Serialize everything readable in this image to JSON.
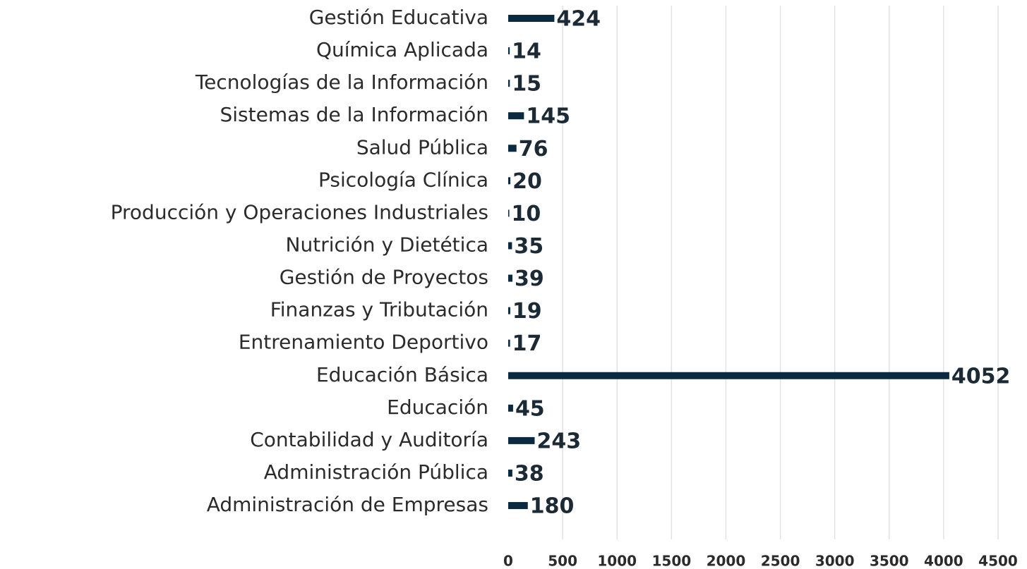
{
  "chart_data": {
    "type": "bar",
    "orientation": "horizontal",
    "categories": [
      "Gestión Educativa",
      "Química Aplicada",
      "Tecnologías de la Información",
      "Sistemas de la Información",
      "Salud Pública",
      "Psicología Clínica",
      "Producción y Operaciones Industriales",
      "Nutrición y Dietética",
      "Gestión de Proyectos",
      "Finanzas y Tributación",
      "Entrenamiento Deportivo",
      "Educación Básica",
      "Educación",
      "Contabilidad y Auditoría",
      "Administración Pública",
      "Administración de Empresas"
    ],
    "values": [
      424,
      14,
      15,
      145,
      76,
      20,
      10,
      35,
      39,
      19,
      17,
      4052,
      45,
      243,
      38,
      180
    ],
    "color": "#0b2a40",
    "xlim": [
      0,
      4500
    ],
    "xticks": [
      0,
      500,
      1000,
      1500,
      2000,
      2500,
      3000,
      3500,
      4000,
      4500
    ],
    "grid": true
  }
}
